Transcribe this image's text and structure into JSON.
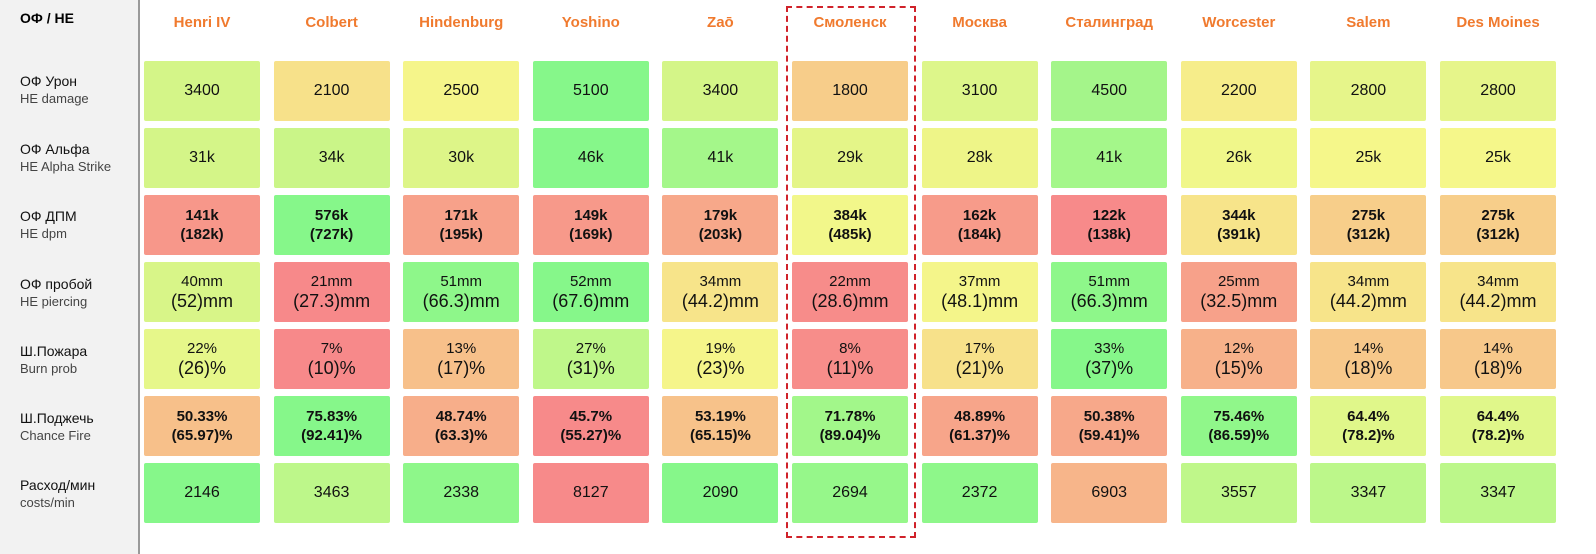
{
  "chart_data": {
    "type": "table",
    "corner_label": "ОФ / HE",
    "highlighted_column": "Смоленск",
    "columns": [
      "Henri IV",
      "Colbert",
      "Hindenburg",
      "Yoshino",
      "Zaō",
      "Смоленск",
      "Москва",
      "Сталинград",
      "Worcester",
      "Salem",
      "Des Moines"
    ],
    "rows": [
      {
        "label_ru": "ОФ Урон",
        "label_en": "HE damage",
        "style": "plain",
        "values": [
          [
            "3400"
          ],
          [
            "2100"
          ],
          [
            "2500"
          ],
          [
            "5100"
          ],
          [
            "3400"
          ],
          [
            "1800"
          ],
          [
            "3100"
          ],
          [
            "4500"
          ],
          [
            "2200"
          ],
          [
            "2800"
          ],
          [
            "2800"
          ]
        ],
        "colors": [
          "#d4f588",
          "#f7e18a",
          "#f5f58a",
          "#86f78a",
          "#d4f588",
          "#f7cd8a",
          "#ddf68a",
          "#a4f58a",
          "#f6ed8a",
          "#e6f58a",
          "#e6f58a"
        ]
      },
      {
        "label_ru": "ОФ Альфа",
        "label_en": "HE Alpha Strike",
        "style": "plain",
        "values": [
          [
            "31k"
          ],
          [
            "34k"
          ],
          [
            "30k"
          ],
          [
            "46k"
          ],
          [
            "41k"
          ],
          [
            "29k"
          ],
          [
            "28k"
          ],
          [
            "41k"
          ],
          [
            "26k"
          ],
          [
            "25k"
          ],
          [
            "25k"
          ]
        ],
        "colors": [
          "#d4f588",
          "#caf588",
          "#ddf588",
          "#86f78a",
          "#a4f78a",
          "#e4f588",
          "#eef588",
          "#a4f78a",
          "#f0f78a",
          "#f5f78a",
          "#f5f78a"
        ]
      },
      {
        "label_ru": "ОФ ДПМ",
        "label_en": "HE dpm",
        "style": "bold",
        "values": [
          [
            "141k",
            "(182k)"
          ],
          [
            "576k",
            "(727k)"
          ],
          [
            "171k",
            "(195k)"
          ],
          [
            "149k",
            "(169k)"
          ],
          [
            "179k",
            "(203k)"
          ],
          [
            "384k",
            "(485k)"
          ],
          [
            "162k",
            "(184k)"
          ],
          [
            "122k",
            "(138k)"
          ],
          [
            "344k",
            "(391k)"
          ],
          [
            "275k",
            "(312k)"
          ],
          [
            "275k",
            "(312k)"
          ]
        ],
        "colors": [
          "#f7978a",
          "#86f78a",
          "#f7a18a",
          "#f7998a",
          "#f7a88a",
          "#f2f78a",
          "#f79b8a",
          "#f78a8a",
          "#f7e48a",
          "#f7ce8a",
          "#f7ce8a"
        ]
      },
      {
        "label_ru": "ОФ пробой",
        "label_en": "HE piercing",
        "style": "two",
        "values": [
          [
            "40mm",
            "(52)mm"
          ],
          [
            "21mm",
            "(27.3)mm"
          ],
          [
            "51mm",
            "(66.3)mm"
          ],
          [
            "52mm",
            "(67.6)mm"
          ],
          [
            "34mm",
            "(44.2)mm"
          ],
          [
            "22mm",
            "(28.6)mm"
          ],
          [
            "37mm",
            "(48.1)mm"
          ],
          [
            "51mm",
            "(66.3)mm"
          ],
          [
            "25mm",
            "(32.5)mm"
          ],
          [
            "34mm",
            "(44.2)mm"
          ],
          [
            "34mm",
            "(44.2)mm"
          ]
        ],
        "colors": [
          "#d8f588",
          "#f7898a",
          "#8ef78a",
          "#86f78a",
          "#f7e48a",
          "#f78c8a",
          "#f4f58a",
          "#8ef78a",
          "#f7a18a",
          "#f7e48a",
          "#f7e48a"
        ]
      },
      {
        "label_ru": "Ш.Пожара",
        "label_en": "Burn prob",
        "style": "two",
        "values": [
          [
            "22%",
            "(26)%"
          ],
          [
            "7%",
            "(10)%"
          ],
          [
            "13%",
            "(17)%"
          ],
          [
            "27%",
            "(31)%"
          ],
          [
            "19%",
            "(23)%"
          ],
          [
            "8%",
            "(11)%"
          ],
          [
            "17%",
            "(21)%"
          ],
          [
            "33%",
            "(37)%"
          ],
          [
            "12%",
            "(15)%"
          ],
          [
            "14%",
            "(18)%"
          ],
          [
            "14%",
            "(18)%"
          ]
        ],
        "colors": [
          "#e6f78a",
          "#f7898a",
          "#f7c08a",
          "#bff78a",
          "#f5f58a",
          "#f78d8a",
          "#f7e18a",
          "#86f78a",
          "#f7b18a",
          "#f7c88a",
          "#f7c88a"
        ]
      },
      {
        "label_ru": "Ш.Поджечь",
        "label_en": "Chance Fire",
        "style": "bold",
        "values": [
          [
            "50.33%",
            "(65.97)%"
          ],
          [
            "75.83%",
            "(92.41)%"
          ],
          [
            "48.74%",
            "(63.3)%"
          ],
          [
            "45.7%",
            "(55.27)%"
          ],
          [
            "53.19%",
            "(65.15)%"
          ],
          [
            "71.78%",
            "(89.04)%"
          ],
          [
            "48.89%",
            "(61.37)%"
          ],
          [
            "50.38%",
            "(59.41)%"
          ],
          [
            "75.46%",
            "(86.59)%"
          ],
          [
            "64.4%",
            "(78.2)%"
          ],
          [
            "64.4%",
            "(78.2)%"
          ]
        ],
        "colors": [
          "#f7c08a",
          "#86f78a",
          "#f7ae8a",
          "#f78a8a",
          "#f7c28a",
          "#a2f78a",
          "#f7a58a",
          "#f7a88a",
          "#90f78a",
          "#e0f78a",
          "#e0f78a"
        ]
      },
      {
        "label_ru": "Расход/мин",
        "label_en": "costs/min",
        "style": "plain",
        "values": [
          [
            "2146"
          ],
          [
            "3463"
          ],
          [
            "2338"
          ],
          [
            "8127"
          ],
          [
            "2090"
          ],
          [
            "2694"
          ],
          [
            "2372"
          ],
          [
            "6903"
          ],
          [
            "3557"
          ],
          [
            "3347"
          ],
          [
            "3347"
          ]
        ],
        "colors": [
          "#86f78a",
          "#bdf78a",
          "#8ef78a",
          "#f78a8a",
          "#86f78a",
          "#96f78a",
          "#8ef78a",
          "#f7b58a",
          "#bff78a",
          "#bcf78a",
          "#bcf78a"
        ]
      }
    ]
  }
}
